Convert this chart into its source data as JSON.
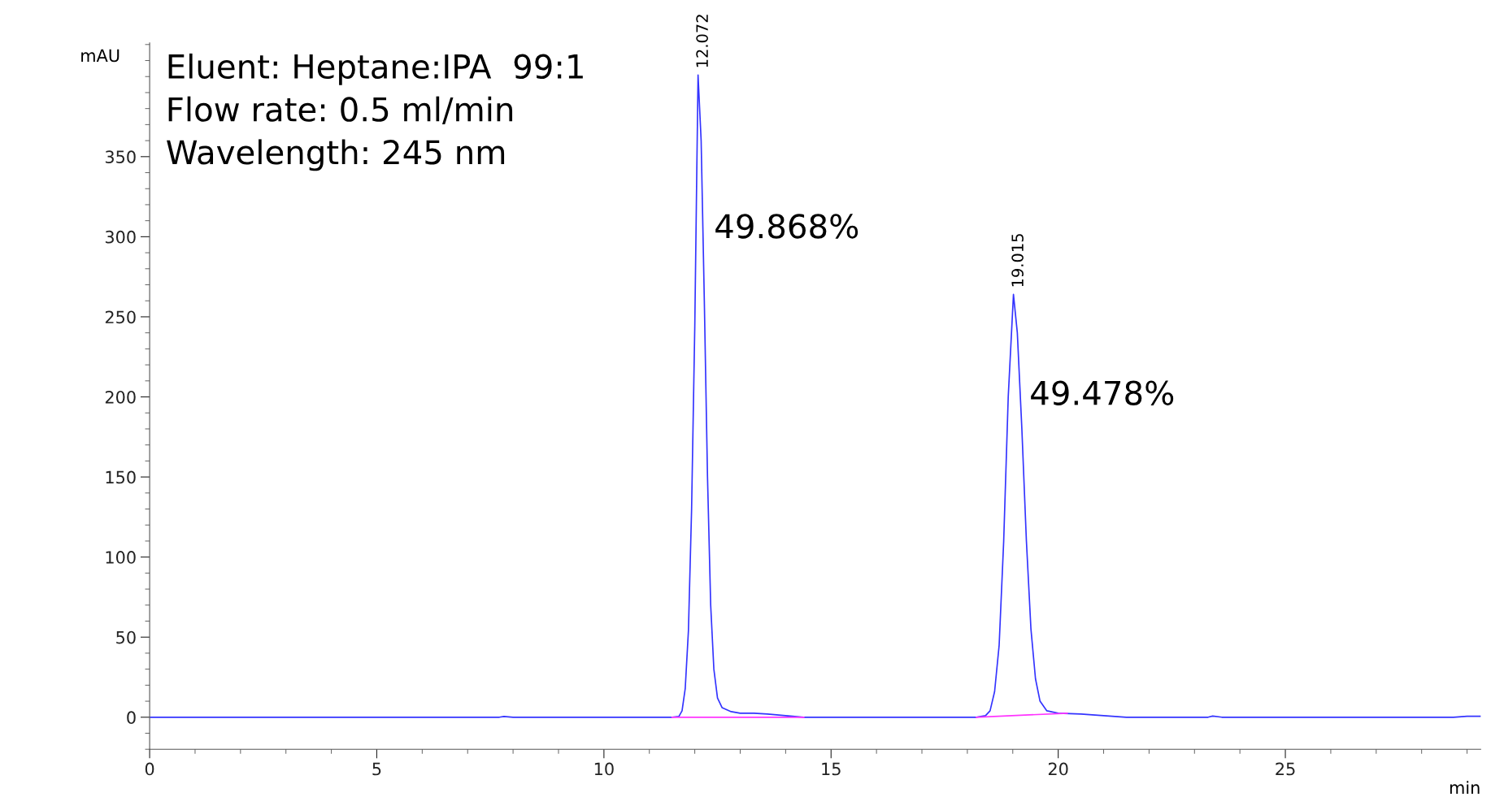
{
  "chart_data": {
    "type": "line",
    "ylabel": "mAU",
    "xlabel": "min",
    "xlim": [
      0,
      29.3
    ],
    "xticks": [
      0,
      5,
      10,
      15,
      20,
      25
    ],
    "ylim": [
      -20,
      421
    ],
    "yticks": [
      0,
      50,
      100,
      150,
      200,
      250,
      300,
      350
    ],
    "grid": false,
    "marker": "none",
    "line_style": "solid",
    "series": [
      {
        "color": "#3333ff",
        "x": [
          0,
          7.7,
          7.8,
          8.0,
          11.5,
          11.65,
          11.72,
          11.79,
          11.86,
          11.93,
          12.0,
          12.072,
          12.14,
          12.21,
          12.28,
          12.35,
          12.42,
          12.5,
          12.6,
          12.8,
          13.0,
          13.3,
          13.6,
          14.0,
          14.4,
          18.2,
          18.4,
          18.5,
          18.6,
          18.7,
          18.8,
          18.9,
          19.015,
          19.1,
          19.2,
          19.3,
          19.4,
          19.5,
          19.6,
          19.75,
          20.0,
          20.5,
          21.0,
          21.5,
          23.3,
          23.4,
          23.6,
          28.7,
          29.0,
          29.3
        ],
        "values": [
          0,
          0,
          0.5,
          0,
          0,
          0.5,
          4,
          18,
          54,
          130,
          244,
          401,
          360,
          260,
          150,
          70,
          30,
          12,
          6,
          3.5,
          2.5,
          2.5,
          2,
          1,
          0,
          0,
          1,
          4,
          16,
          45,
          110,
          200,
          264,
          240,
          180,
          110,
          55,
          24,
          10,
          4,
          2.5,
          2,
          1,
          0,
          0,
          0.7,
          0,
          0,
          0.6,
          0.6
        ]
      },
      {
        "color": "#ff33ff",
        "x": [
          11.5,
          14.4
        ],
        "values": [
          0,
          0
        ]
      },
      {
        "color": "#ff33ff",
        "x": [
          18.2,
          20.2
        ],
        "values": [
          0,
          2.5
        ]
      }
    ],
    "annotations": [
      "Eluent: Heptane:IPA  99:1",
      "Flow rate: 0.5 ml/min",
      "Wavelength: 245 nm",
      {
        "text": "12.072",
        "x": 12.072,
        "y": 401
      },
      {
        "text": "19.015",
        "x": 19.015,
        "y": 264
      },
      "49.868%",
      "49.478%"
    ]
  }
}
